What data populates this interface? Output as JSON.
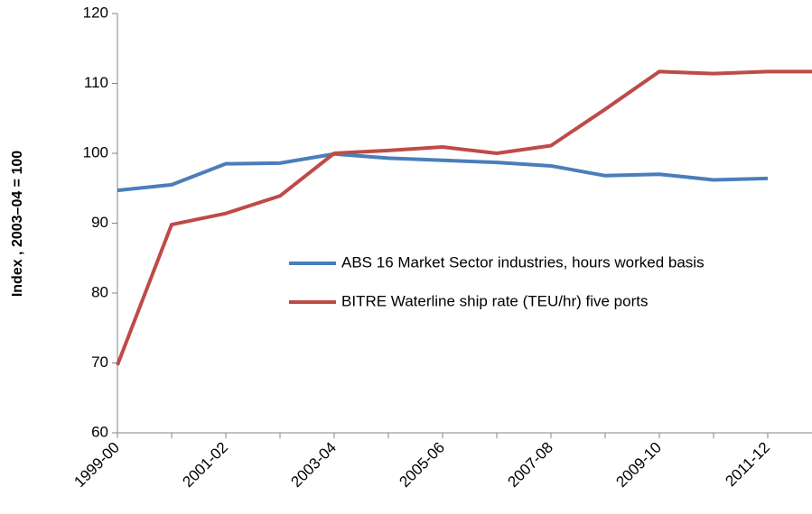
{
  "chart_data": {
    "type": "line",
    "y_label": "Index , 2003–04 = 100",
    "categories": [
      "1999-00",
      null,
      "2001-02",
      null,
      "2003-04",
      null,
      "2005-06",
      null,
      "2007-08",
      null,
      "2009-10",
      null,
      "2011-12",
      null
    ],
    "series": [
      {
        "name": "ABS 16 Market Sector industries, hours worked basis",
        "color": "#4a7ebb",
        "values": [
          94.7,
          95.5,
          98.5,
          98.6,
          99.9,
          99.3,
          99.0,
          98.7,
          98.2,
          96.8,
          97.0,
          96.2,
          96.4,
          null
        ]
      },
      {
        "name": "BITRE Waterline ship rate (TEU/hr) five ports",
        "color": "#be4b48",
        "values": [
          69.7,
          89.8,
          91.4,
          93.9,
          100.0,
          100.4,
          100.9,
          100.0,
          101.1,
          106.3,
          111.7,
          111.4,
          111.7,
          111.7
        ]
      }
    ],
    "ylim": [
      60,
      120
    ],
    "yticks": [
      60,
      70,
      80,
      90,
      100,
      110,
      120
    ],
    "grid": false,
    "legend": "right"
  }
}
